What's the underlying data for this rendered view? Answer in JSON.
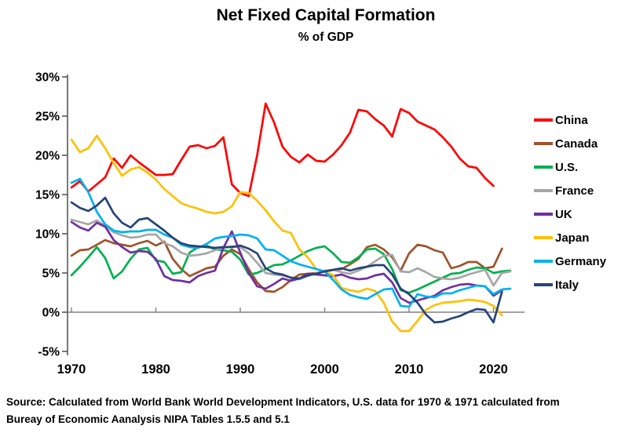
{
  "page": {
    "background": "#FFFFFF"
  },
  "chart_data": {
    "type": "line",
    "title": "Net Fixed Capital Formation",
    "subtitle": "% of GDP",
    "xlabel": "",
    "ylabel": "",
    "ylim": [
      -5,
      30
    ],
    "xlim": [
      1970,
      2022
    ],
    "grid": "zero-line-only",
    "legend_position": "right",
    "y_ticks": [
      {
        "v": 30,
        "label": "30%"
      },
      {
        "v": 25,
        "label": "25%"
      },
      {
        "v": 20,
        "label": "20%"
      },
      {
        "v": 15,
        "label": "15%"
      },
      {
        "v": 10,
        "label": "10%"
      },
      {
        "v": 5,
        "label": "5%"
      },
      {
        "v": 0,
        "label": "0%"
      },
      {
        "v": -5,
        "label": "-5%"
      }
    ],
    "x_ticks": [
      {
        "v": 1970,
        "label": "1970"
      },
      {
        "v": 1980,
        "label": "1980"
      },
      {
        "v": 1990,
        "label": "1990"
      },
      {
        "v": 2000,
        "label": "2000"
      },
      {
        "v": 2010,
        "label": "2010"
      },
      {
        "v": 2020,
        "label": "2020"
      }
    ],
    "x": [
      1970,
      1971,
      1972,
      1973,
      1974,
      1975,
      1976,
      1977,
      1978,
      1979,
      1980,
      1981,
      1982,
      1983,
      1984,
      1985,
      1986,
      1987,
      1988,
      1989,
      1990,
      1991,
      1992,
      1993,
      1994,
      1995,
      1996,
      1997,
      1998,
      1999,
      2000,
      2001,
      2002,
      2003,
      2004,
      2005,
      2006,
      2007,
      2008,
      2009,
      2010,
      2011,
      2012,
      2013,
      2014,
      2015,
      2016,
      2017,
      2018,
      2019,
      2020,
      2021,
      2022
    ],
    "series": [
      {
        "name": "China",
        "color": "#FF0000",
        "values": [
          15.9,
          16.7,
          15.4,
          16.3,
          17.2,
          19.6,
          18.4,
          20.0,
          19.1,
          18.3,
          17.5,
          17.5,
          17.6,
          19.4,
          21.1,
          21.3,
          20.9,
          21.2,
          22.3,
          16.3,
          15.2,
          14.8,
          20.0,
          26.6,
          24.2,
          21.1,
          19.8,
          19.1,
          20.1,
          19.3,
          19.2,
          20.1,
          21.3,
          22.9,
          25.8,
          25.6,
          24.6,
          23.8,
          22.4,
          25.9,
          25.4,
          24.3,
          23.8,
          23.3,
          22.3,
          21.1,
          19.6,
          18.6,
          18.4,
          17.1,
          16.1,
          null,
          null
        ]
      },
      {
        "name": "Canada",
        "color": "#A0522D",
        "values": [
          7.2,
          7.9,
          8.0,
          8.6,
          9.2,
          8.8,
          8.6,
          8.4,
          8.8,
          9.1,
          8.5,
          9.0,
          6.8,
          5.5,
          4.6,
          5.1,
          5.6,
          5.8,
          7.2,
          8.0,
          7.4,
          5.5,
          3.8,
          2.7,
          2.6,
          3.2,
          4.1,
          4.8,
          4.9,
          5.0,
          5.2,
          5.4,
          5.5,
          6.1,
          6.8,
          8.3,
          8.6,
          8.0,
          7.0,
          5.3,
          7.5,
          8.6,
          8.4,
          7.9,
          7.6,
          5.6,
          5.9,
          6.4,
          6.4,
          5.6,
          5.8,
          8.1,
          null
        ]
      },
      {
        "name": "U.S.",
        "color": "#00B050",
        "values": [
          4.7,
          5.8,
          7.0,
          8.3,
          6.9,
          4.3,
          5.2,
          6.8,
          8.0,
          8.2,
          6.6,
          6.4,
          4.9,
          5.1,
          7.6,
          8.3,
          8.5,
          8.0,
          7.9,
          7.7,
          6.7,
          4.8,
          5.0,
          5.5,
          6.0,
          6.1,
          6.6,
          7.2,
          7.8,
          8.2,
          8.4,
          7.5,
          6.4,
          6.3,
          7.0,
          8.0,
          8.1,
          7.4,
          5.5,
          2.8,
          2.5,
          2.9,
          3.4,
          3.9,
          4.4,
          4.9,
          5.0,
          5.4,
          5.7,
          5.6,
          5.0,
          5.2,
          5.3
        ]
      },
      {
        "name": "France",
        "color": "#A6A6A6",
        "values": [
          11.8,
          11.5,
          11.2,
          11.7,
          11.0,
          10.2,
          9.8,
          9.5,
          9.6,
          9.9,
          9.9,
          8.8,
          8.4,
          7.6,
          7.2,
          7.3,
          7.5,
          7.9,
          8.2,
          8.4,
          8.3,
          7.5,
          6.3,
          5.0,
          4.8,
          4.7,
          4.4,
          4.2,
          4.6,
          5.0,
          5.3,
          5.4,
          5.1,
          4.9,
          5.3,
          5.8,
          6.5,
          7.2,
          7.3,
          5.2,
          5.1,
          5.6,
          5.1,
          4.5,
          4.3,
          4.2,
          4.4,
          4.8,
          5.1,
          5.4,
          3.4,
          5.0,
          5.2
        ]
      },
      {
        "name": "UK",
        "color": "#7030A0",
        "values": [
          11.5,
          10.8,
          10.4,
          11.4,
          10.9,
          9.2,
          8.3,
          7.6,
          7.8,
          7.7,
          6.8,
          4.6,
          4.1,
          4.0,
          3.8,
          4.6,
          5.0,
          5.3,
          8.2,
          10.3,
          7.6,
          5.0,
          3.3,
          3.0,
          3.6,
          4.3,
          4.0,
          4.3,
          4.9,
          4.8,
          4.7,
          4.6,
          4.8,
          4.4,
          4.2,
          4.3,
          4.7,
          4.9,
          3.8,
          1.8,
          1.2,
          1.5,
          1.8,
          2.1,
          2.8,
          3.2,
          3.5,
          3.6,
          3.4,
          3.3,
          2.1,
          2.8,
          null
        ]
      },
      {
        "name": "Japan",
        "color": "#FFC000",
        "values": [
          22.0,
          20.4,
          20.9,
          22.5,
          20.9,
          19.0,
          17.4,
          18.2,
          18.5,
          17.8,
          16.9,
          15.7,
          14.8,
          13.9,
          13.5,
          13.2,
          12.8,
          12.6,
          12.8,
          13.5,
          15.3,
          15.2,
          14.2,
          13.0,
          11.6,
          10.4,
          10.1,
          8.0,
          7.0,
          5.5,
          5.2,
          4.7,
          3.1,
          2.8,
          2.6,
          3.0,
          2.7,
          1.2,
          -1.2,
          -2.4,
          -2.4,
          -1.1,
          0.3,
          0.9,
          1.2,
          1.3,
          1.4,
          1.6,
          1.5,
          1.3,
          0.8,
          -0.4,
          null
        ]
      },
      {
        "name": "Germany",
        "color": "#00B0F0",
        "values": [
          16.5,
          17.0,
          15.3,
          12.8,
          11.2,
          10.4,
          10.2,
          10.3,
          10.3,
          10.5,
          10.5,
          9.9,
          9.5,
          8.6,
          8.3,
          8.2,
          8.7,
          9.4,
          9.6,
          9.7,
          9.9,
          9.8,
          9.4,
          8.0,
          7.9,
          7.2,
          6.5,
          6.1,
          5.8,
          5.5,
          5.2,
          4.1,
          2.9,
          2.2,
          1.9,
          1.7,
          2.3,
          2.9,
          3.0,
          0.8,
          0.7,
          2.3,
          2.0,
          1.9,
          2.4,
          2.4,
          2.8,
          3.1,
          3.4,
          3.3,
          2.3,
          2.9,
          3.0
        ]
      },
      {
        "name": "Italy",
        "color": "#264478",
        "values": [
          14.0,
          13.3,
          12.9,
          13.6,
          14.6,
          12.6,
          11.4,
          10.8,
          11.8,
          12.0,
          11.2,
          10.4,
          9.5,
          8.8,
          8.5,
          8.4,
          8.3,
          8.2,
          8.3,
          8.3,
          8.5,
          8.1,
          7.5,
          5.6,
          5.0,
          4.8,
          4.4,
          4.3,
          4.7,
          4.9,
          5.2,
          5.4,
          5.6,
          5.3,
          5.6,
          5.8,
          6.0,
          6.0,
          4.8,
          3.0,
          2.3,
          1.2,
          -0.3,
          -1.3,
          -1.2,
          -0.8,
          -0.5,
          0.0,
          0.4,
          0.3,
          -1.3,
          2.6,
          null
        ]
      }
    ],
    "axis_colors": {
      "axis": "#595959",
      "zero_line": "#808080",
      "tick_label": "#000000"
    },
    "source_line1": "Source:  Calculated from World Bank World Development Indicators, U.S. data for 1970 & 1971 calculated from",
    "source_line2": "Bureay of Economic Aanalysis NIPA Tables 1.5.5 and 5.1"
  }
}
